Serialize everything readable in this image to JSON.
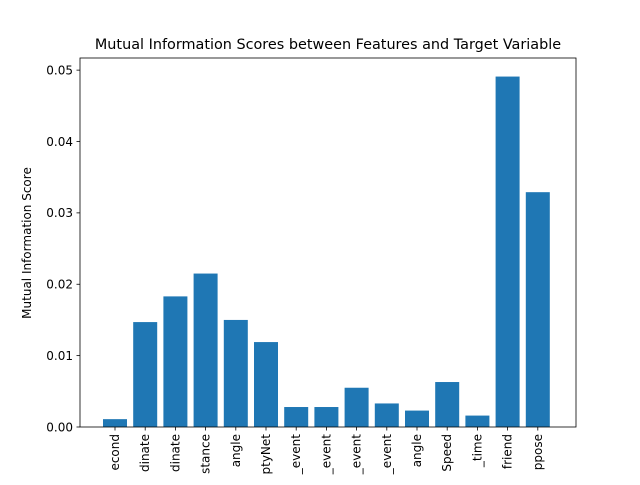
{
  "chart_data": {
    "type": "bar",
    "title": "Mutual Information Scores between Features and Target Variable",
    "xlabel": "",
    "ylabel": "Mutual Information Score",
    "categories": [
      "econd",
      "dinate",
      "dinate",
      "stance",
      "angle",
      "ptyNet",
      "_event",
      "_event",
      "_event",
      "_event",
      "angle",
      "Speed",
      "_time",
      "friend",
      "ppose"
    ],
    "values": [
      0.0011,
      0.0147,
      0.0183,
      0.0215,
      0.015,
      0.0119,
      0.0028,
      0.0028,
      0.0055,
      0.0033,
      0.0023,
      0.0063,
      0.0016,
      0.0491,
      0.0329
    ],
    "ylim": [
      0,
      0.0517
    ],
    "yticks": [
      0.0,
      0.01,
      0.02,
      0.03,
      0.04,
      0.05
    ],
    "ytick_labels": [
      "0.00",
      "0.01",
      "0.02",
      "0.03",
      "0.04",
      "0.05"
    ],
    "bar_color": "#1f77b4",
    "grid": false
  }
}
